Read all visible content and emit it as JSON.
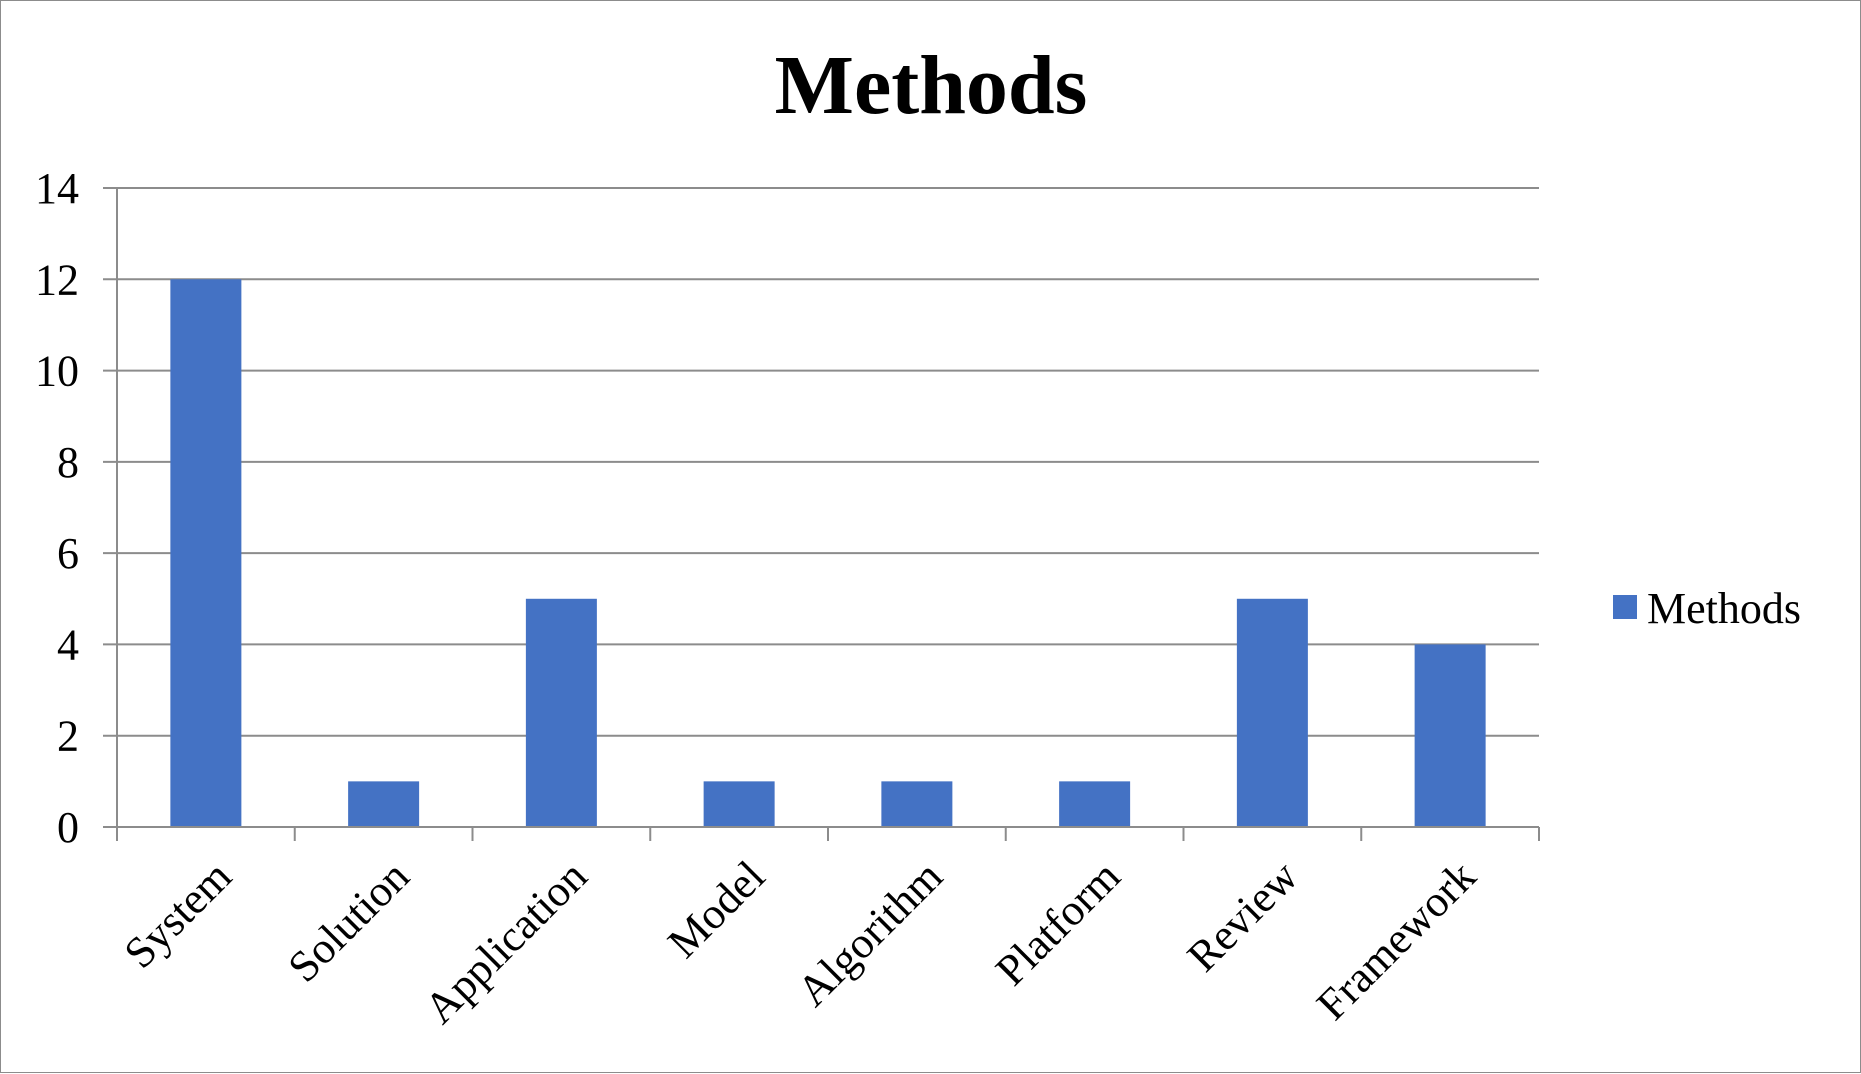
{
  "chart_data": {
    "type": "bar",
    "title": "Methods",
    "xlabel": "",
    "ylabel": "",
    "categories": [
      "System",
      "Solution",
      "Application",
      "Model",
      "Algorithm",
      "Platform",
      "Review",
      "Framework"
    ],
    "series": [
      {
        "name": "Methods",
        "values": [
          12,
          1,
          5,
          1,
          1,
          1,
          5,
          4
        ],
        "color": "#4472C4"
      }
    ],
    "ylim": [
      0,
      14
    ],
    "yticks": [
      "0",
      "2",
      "4",
      "6",
      "8",
      "10",
      "12",
      "14"
    ],
    "grid": true,
    "legend": "right"
  }
}
